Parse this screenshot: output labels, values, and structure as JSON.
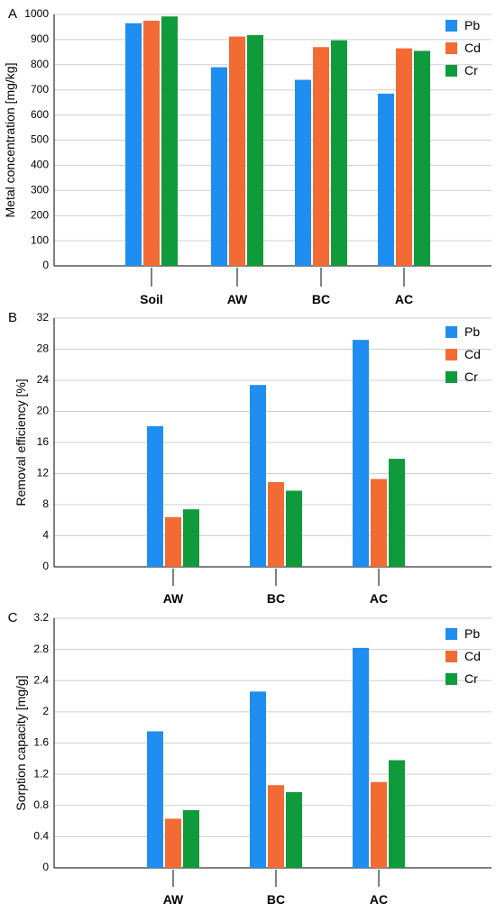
{
  "colors": {
    "Pb": "#1e8ff0",
    "Cd": "#f26b35",
    "Cr": "#0f9a3c",
    "grid": "#cfcfcf",
    "axis": "#000000"
  },
  "chart_data": [
    {
      "type": "bar",
      "panel_label": "A",
      "ylabel": "Metal concentration [mg/kg]",
      "xlabel": "",
      "title": "",
      "categories": [
        "Soil",
        "AW",
        "BC",
        "AC"
      ],
      "ylim": [
        0,
        1000
      ],
      "yticks": [
        0,
        100,
        200,
        300,
        400,
        500,
        600,
        700,
        800,
        900,
        1000
      ],
      "ytick_labels": [
        "0",
        "100",
        "200",
        "300",
        "400",
        "500",
        "600",
        "700",
        "800",
        "900",
        "1000"
      ],
      "grid": true,
      "legend_position": "top-right",
      "series": [
        {
          "name": "Pb",
          "values": [
            965,
            790,
            740,
            685
          ]
        },
        {
          "name": "Cd",
          "values": [
            975,
            912,
            870,
            865
          ]
        },
        {
          "name": "Cr",
          "values": [
            992,
            918,
            897,
            855
          ]
        }
      ]
    },
    {
      "type": "bar",
      "panel_label": "B",
      "ylabel": "Removal efficiency [%]",
      "xlabel": "",
      "title": "",
      "categories": [
        "AW",
        "BC",
        "AC"
      ],
      "ylim": [
        0,
        32
      ],
      "yticks": [
        0,
        4,
        8,
        12,
        16,
        20,
        24,
        28,
        32
      ],
      "ytick_labels": [
        "0",
        "4",
        "8",
        "12",
        "16",
        "20",
        "24",
        "28",
        "32"
      ],
      "grid": true,
      "legend_position": "top-right",
      "series": [
        {
          "name": "Pb",
          "values": [
            18.1,
            23.4,
            29.2
          ]
        },
        {
          "name": "Cd",
          "values": [
            6.4,
            10.9,
            11.3
          ]
        },
        {
          "name": "Cr",
          "values": [
            7.4,
            9.8,
            13.9
          ]
        }
      ]
    },
    {
      "type": "bar",
      "panel_label": "C",
      "ylabel": "Sorption capacity [mg/g]",
      "xlabel": "",
      "title": "",
      "categories": [
        "AW",
        "BC",
        "AC"
      ],
      "ylim": [
        0,
        3.2
      ],
      "yticks": [
        0,
        0.4,
        0.8,
        1.2,
        1.6,
        2,
        2.4,
        2.8,
        3.2
      ],
      "ytick_labels": [
        "0",
        "0.4",
        "0.8",
        "1.2",
        "1.6",
        "2",
        "2.4",
        "2.8",
        "3.2"
      ],
      "grid": true,
      "legend_position": "top-right",
      "series": [
        {
          "name": "Pb",
          "values": [
            1.75,
            2.26,
            2.82
          ]
        },
        {
          "name": "Cd",
          "values": [
            0.63,
            1.06,
            1.1
          ]
        },
        {
          "name": "Cr",
          "values": [
            0.74,
            0.97,
            1.38
          ]
        }
      ]
    }
  ]
}
